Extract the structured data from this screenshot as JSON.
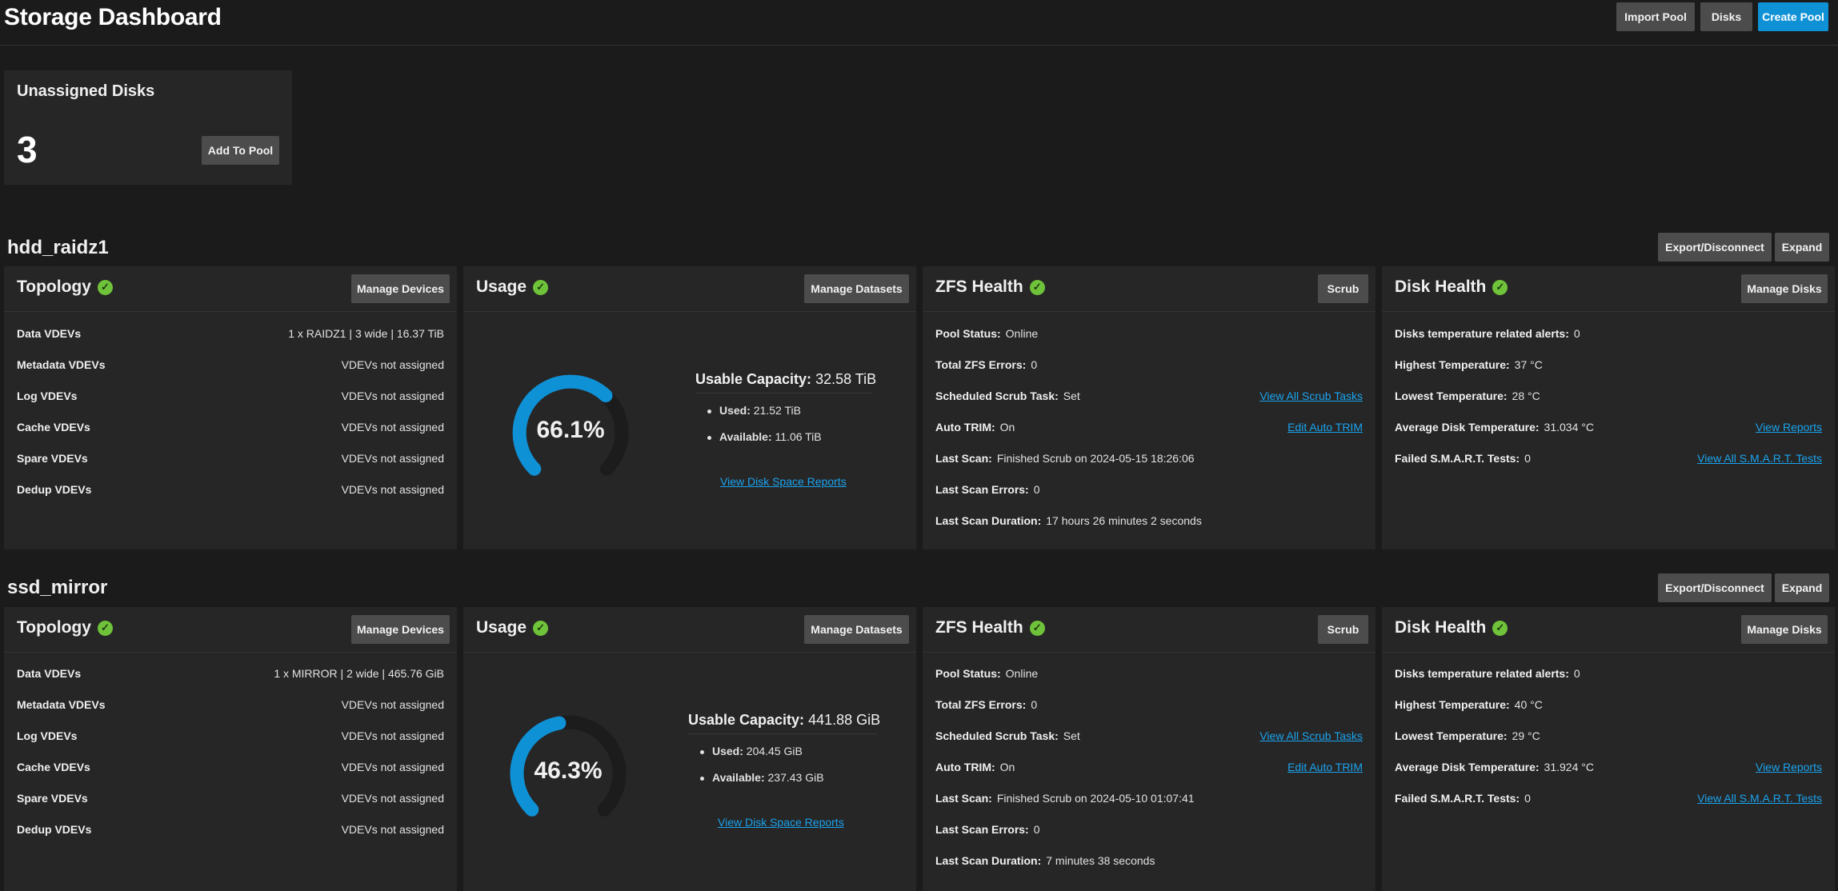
{
  "header": {
    "title": "Storage Dashboard",
    "import_pool": "Import Pool",
    "disks": "Disks",
    "create_pool": "Create Pool"
  },
  "unassigned": {
    "title": "Unassigned Disks",
    "count": "3",
    "add_to_pool": "Add To Pool"
  },
  "colors": {
    "accent": "#0f91d6",
    "ok": "#6fc33a",
    "gauge_track": "#1c1c1c",
    "link": "#1aa3ee"
  },
  "pools": [
    {
      "name": "hdd_raidz1",
      "export_label": "Export/Disconnect",
      "expand_label": "Expand",
      "topology": {
        "title": "Topology",
        "button": "Manage Devices",
        "rows": [
          {
            "label": "Data VDEVs",
            "value": "1 x RAIDZ1 | 3 wide | 16.37 TiB"
          },
          {
            "label": "Metadata VDEVs",
            "value": "VDEVs not assigned"
          },
          {
            "label": "Log VDEVs",
            "value": "VDEVs not assigned"
          },
          {
            "label": "Cache VDEVs",
            "value": "VDEVs not assigned"
          },
          {
            "label": "Spare VDEVs",
            "value": "VDEVs not assigned"
          },
          {
            "label": "Dedup VDEVs",
            "value": "VDEVs not assigned"
          }
        ]
      },
      "usage": {
        "title": "Usage",
        "button": "Manage Datasets",
        "percent_label": "66.1%",
        "percent": 66.1,
        "capacity_label": "Usable Capacity:",
        "capacity_value": "32.58 TiB",
        "used_label": "Used:",
        "used_value": "21.52 TiB",
        "available_label": "Available:",
        "available_value": "11.06 TiB",
        "reports_link": "View Disk Space Reports"
      },
      "zfs": {
        "title": "ZFS Health",
        "button": "Scrub",
        "rows": [
          {
            "label": "Pool Status:",
            "value": "Online",
            "link": ""
          },
          {
            "label": "Total ZFS Errors:",
            "value": "0",
            "link": ""
          },
          {
            "label": "Scheduled Scrub Task:",
            "value": "Set",
            "link": "View All Scrub Tasks"
          },
          {
            "label": "Auto TRIM:",
            "value": "On",
            "link": "Edit Auto TRIM"
          },
          {
            "label": "Last Scan:",
            "value": "Finished Scrub on 2024-05-15 18:26:06",
            "link": ""
          },
          {
            "label": "Last Scan Errors:",
            "value": "0",
            "link": ""
          },
          {
            "label": "Last Scan Duration:",
            "value": "17 hours 26 minutes 2 seconds",
            "link": ""
          }
        ]
      },
      "disk": {
        "title": "Disk Health",
        "button": "Manage Disks",
        "rows": [
          {
            "label": "Disks temperature related alerts:",
            "value": "0",
            "link": ""
          },
          {
            "label": "Highest Temperature:",
            "value": "37 °C",
            "link": ""
          },
          {
            "label": "Lowest Temperature:",
            "value": "28 °C",
            "link": ""
          },
          {
            "label": "Average Disk Temperature:",
            "value": "31.034 °C",
            "link": "View Reports"
          },
          {
            "label": "Failed S.M.A.R.T. Tests:",
            "value": "0",
            "link": "View All S.M.A.R.T. Tests"
          }
        ]
      }
    },
    {
      "name": "ssd_mirror",
      "export_label": "Export/Disconnect",
      "expand_label": "Expand",
      "topology": {
        "title": "Topology",
        "button": "Manage Devices",
        "rows": [
          {
            "label": "Data VDEVs",
            "value": "1 x MIRROR | 2 wide | 465.76 GiB"
          },
          {
            "label": "Metadata VDEVs",
            "value": "VDEVs not assigned"
          },
          {
            "label": "Log VDEVs",
            "value": "VDEVs not assigned"
          },
          {
            "label": "Cache VDEVs",
            "value": "VDEVs not assigned"
          },
          {
            "label": "Spare VDEVs",
            "value": "VDEVs not assigned"
          },
          {
            "label": "Dedup VDEVs",
            "value": "VDEVs not assigned"
          }
        ]
      },
      "usage": {
        "title": "Usage",
        "button": "Manage Datasets",
        "percent_label": "46.3%",
        "percent": 46.3,
        "capacity_label": "Usable Capacity:",
        "capacity_value": "441.88 GiB",
        "used_label": "Used:",
        "used_value": "204.45 GiB",
        "available_label": "Available:",
        "available_value": "237.43 GiB",
        "reports_link": "View Disk Space Reports"
      },
      "zfs": {
        "title": "ZFS Health",
        "button": "Scrub",
        "rows": [
          {
            "label": "Pool Status:",
            "value": "Online",
            "link": ""
          },
          {
            "label": "Total ZFS Errors:",
            "value": "0",
            "link": ""
          },
          {
            "label": "Scheduled Scrub Task:",
            "value": "Set",
            "link": "View All Scrub Tasks"
          },
          {
            "label": "Auto TRIM:",
            "value": "On",
            "link": "Edit Auto TRIM"
          },
          {
            "label": "Last Scan:",
            "value": "Finished Scrub on 2024-05-10 01:07:41",
            "link": ""
          },
          {
            "label": "Last Scan Errors:",
            "value": "0",
            "link": ""
          },
          {
            "label": "Last Scan Duration:",
            "value": "7 minutes 38 seconds",
            "link": ""
          }
        ]
      },
      "disk": {
        "title": "Disk Health",
        "button": "Manage Disks",
        "rows": [
          {
            "label": "Disks temperature related alerts:",
            "value": "0",
            "link": ""
          },
          {
            "label": "Highest Temperature:",
            "value": "40 °C",
            "link": ""
          },
          {
            "label": "Lowest Temperature:",
            "value": "29 °C",
            "link": ""
          },
          {
            "label": "Average Disk Temperature:",
            "value": "31.924 °C",
            "link": "View Reports"
          },
          {
            "label": "Failed S.M.A.R.T. Tests:",
            "value": "0",
            "link": "View All S.M.A.R.T. Tests"
          }
        ]
      }
    }
  ]
}
